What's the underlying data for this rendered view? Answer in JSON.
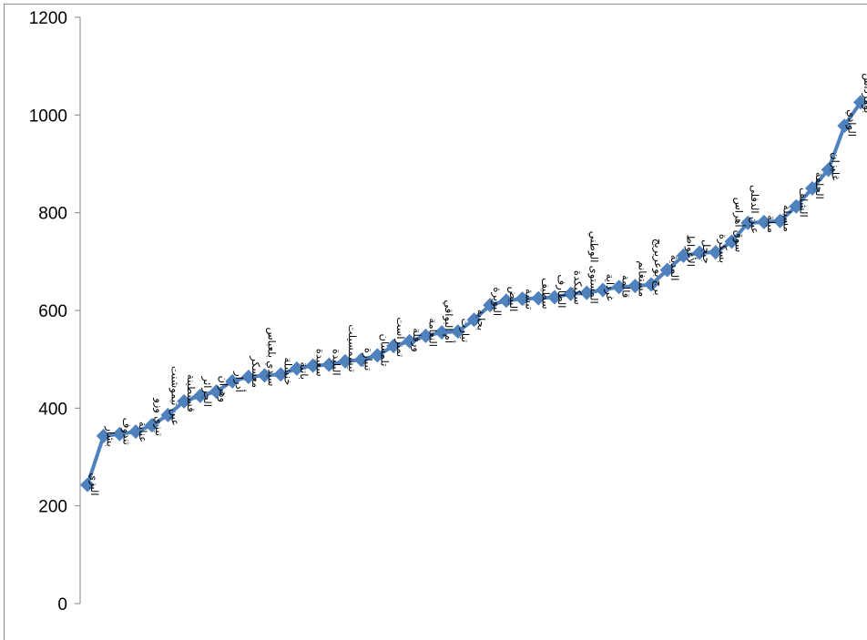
{
  "chart_data": {
    "type": "line",
    "title": "",
    "xlabel": "",
    "ylabel": "",
    "ylim": [
      0,
      1200
    ],
    "yticks": [
      0,
      200,
      400,
      600,
      800,
      1000,
      1200
    ],
    "grid": false,
    "legend": "none",
    "line_color": "#4f81bd",
    "categories": [
      "اليزي",
      "بشار",
      "تندوف",
      "عنابة",
      "تيزي وزو",
      "عين تيموشنت",
      "قسنطينة",
      "الجزائر",
      "وهران",
      "أدرار",
      "معسكر",
      "سيدي بلعباس",
      "خنشلة",
      "باتنة",
      "سعيدة",
      "البليدة",
      "تيسمسيلت",
      "تيبازة",
      "تلمسان",
      "تمنراست",
      "ورقلة",
      "النعامة",
      "أم البواقي",
      "تيارت",
      "بجاية",
      "البويرة",
      "البيض",
      "تبسة",
      "سطيف",
      "الطارف",
      "سكيكدة",
      "المستوى الوطني",
      "غرداية",
      "قالمة",
      "مستغانم",
      "برج بوعريريج",
      "المدية",
      "الأغواط",
      "جيجل",
      "بسكرة",
      "سوق أهراس",
      "عين الدفلى",
      "ميلة",
      "مسيلة",
      "الشلف",
      "الجلفة",
      "غليزان",
      "الوادي",
      "بومرداس"
    ],
    "values": [
      243,
      343,
      347,
      352,
      365,
      386,
      414,
      425,
      434,
      455,
      464,
      467,
      469,
      481,
      487,
      489,
      496,
      499,
      508,
      527,
      537,
      548,
      555,
      557,
      581,
      611,
      620,
      624,
      625,
      627,
      634,
      636,
      642,
      648,
      650,
      653,
      683,
      712,
      718,
      719,
      741,
      779,
      781,
      783,
      813,
      850,
      888,
      978,
      1026
    ]
  }
}
